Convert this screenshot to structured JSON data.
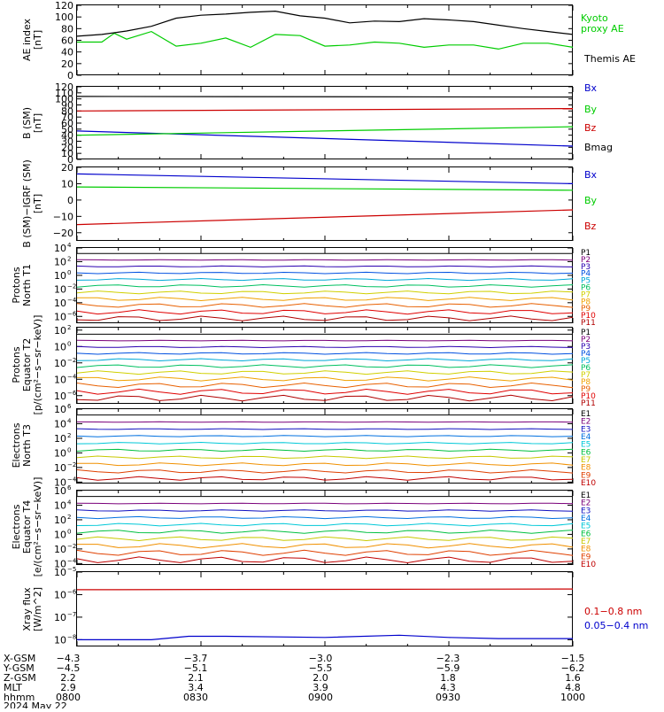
{
  "chart_data": [
    {
      "type": "line",
      "ylabel": "AE index [nT]",
      "ylim": [
        0,
        120
      ],
      "yticks": [
        "0",
        "20",
        "40",
        "60",
        "80",
        "100",
        "120"
      ],
      "x_hours": [
        8.0,
        10.0
      ],
      "series": [
        {
          "name": "Kyoto proxy AE",
          "color": "#00cc00",
          "x": [
            8.0,
            8.1,
            8.15,
            8.2,
            8.3,
            8.4,
            8.5,
            8.6,
            8.7,
            8.8,
            8.9,
            9.0,
            9.1,
            9.2,
            9.3,
            9.4,
            9.5,
            9.6,
            9.7,
            9.8,
            9.9,
            10.0
          ],
          "values": [
            57,
            57,
            72,
            62,
            75,
            50,
            55,
            64,
            48,
            70,
            68,
            50,
            52,
            57,
            55,
            48,
            52,
            52,
            45,
            55,
            55,
            48
          ]
        },
        {
          "name": "Themis AE",
          "color": "#000000",
          "x": [
            8.0,
            8.1,
            8.2,
            8.3,
            8.4,
            8.5,
            8.6,
            8.7,
            8.8,
            8.9,
            9.0,
            9.1,
            9.2,
            9.3,
            9.4,
            9.5,
            9.6,
            9.7,
            9.8,
            9.9,
            10.0
          ],
          "values": [
            67,
            70,
            76,
            84,
            98,
            103,
            105,
            108,
            110,
            102,
            98,
            90,
            93,
            92,
            97,
            95,
            92,
            86,
            80,
            75,
            70
          ]
        }
      ]
    },
    {
      "type": "line",
      "ylabel": "B (SM) [nT]",
      "ylim": [
        0,
        120
      ],
      "yticks": [
        "0",
        "10",
        "20",
        "30",
        "40",
        "50",
        "60",
        "70",
        "80",
        "90",
        "100",
        "110",
        "120"
      ],
      "series": [
        {
          "name": "Bx",
          "color": "#0000cc",
          "x": [
            8.0,
            10.0
          ],
          "values": [
            47,
            22
          ]
        },
        {
          "name": "By",
          "color": "#00cc00",
          "x": [
            8.0,
            10.0
          ],
          "values": [
            40,
            54
          ]
        },
        {
          "name": "Bz",
          "color": "#cc0000",
          "x": [
            8.0,
            10.0
          ],
          "values": [
            80,
            84
          ]
        },
        {
          "name": "Bmag",
          "color": "#000000",
          "x": [
            8.0,
            10.0
          ],
          "values": [
            104,
            103
          ]
        }
      ]
    },
    {
      "type": "line",
      "ylabel": "B (SM)-IGRF (SM) [nT]",
      "ylim": [
        -25,
        20
      ],
      "yticks": [
        "−20",
        "−10",
        "0",
        "10",
        "20"
      ],
      "series": [
        {
          "name": "Bx",
          "color": "#0000cc",
          "x": [
            8.0,
            10.0
          ],
          "values": [
            16,
            10
          ]
        },
        {
          "name": "By",
          "color": "#00cc00",
          "x": [
            8.0,
            10.0
          ],
          "values": [
            8,
            6
          ]
        },
        {
          "name": "Bz",
          "color": "#cc0000",
          "x": [
            8.0,
            10.0
          ],
          "values": [
            -15,
            -6
          ]
        }
      ]
    },
    {
      "type": "line",
      "log": true,
      "ylabel": "Protons North T1",
      "ylim_exp": [
        -7,
        4
      ],
      "tick_exps": [
        4,
        2,
        0,
        -2,
        -4,
        -6
      ],
      "channels": [
        "P1",
        "P2",
        "P3",
        "P4",
        "P5",
        "P6",
        "P7",
        "P8",
        "P9",
        "P10",
        "P11"
      ]
    },
    {
      "type": "line",
      "log": true,
      "ylabel": "Protons Equator T2 [p/(cm²-s-sr-keV)]",
      "ylim_exp": [
        -7,
        2.3
      ],
      "tick_exps": [
        2,
        0,
        -2,
        -4,
        -6
      ],
      "channels": [
        "P1",
        "P2",
        "P3",
        "P4",
        "P5",
        "P6",
        "P7",
        "P8",
        "P9",
        "P10",
        "P11"
      ]
    },
    {
      "type": "line",
      "log": true,
      "ylabel": "Electrons North T3",
      "ylim_exp": [
        -4.2,
        6
      ],
      "tick_exps": [
        6,
        4,
        2,
        0,
        -2,
        -4
      ],
      "channels": [
        "E1",
        "E2",
        "E3",
        "E4",
        "E5",
        "E6",
        "E7",
        "E8",
        "E9",
        "E10"
      ]
    },
    {
      "type": "line",
      "log": true,
      "ylabel": "Electrons Equator T4 [e/(cm²-s-sr-keV)]",
      "ylim_exp": [
        -4.2,
        6
      ],
      "tick_exps": [
        6,
        4,
        2,
        0,
        -2,
        -4
      ],
      "channels": [
        "E1",
        "E2",
        "E3",
        "E4",
        "E5",
        "E6",
        "E7",
        "E8",
        "E9",
        "E10"
      ]
    },
    {
      "type": "line",
      "log": true,
      "ylabel": "Xray flux [W/m^2]",
      "ylim_exp": [
        -8.3,
        -5
      ],
      "tick_exps": [
        -5,
        -6,
        -7,
        -8
      ],
      "series": [
        {
          "name": "0.1−0.8 nm",
          "color": "#cc0000",
          "exp": -5.8
        },
        {
          "name": "0.05−0.4 nm",
          "color": "#0000cc",
          "exp": -8.0
        }
      ]
    }
  ],
  "xaxis": {
    "rows": [
      {
        "label": "X-GSM",
        "values": [
          "−4.3",
          "−3.7",
          "−3.0",
          "−2.3",
          "−1.5"
        ]
      },
      {
        "label": "Y-GSM",
        "values": [
          "−4.5",
          "−5.1",
          "−5.5",
          "−5.9",
          "−6.2"
        ]
      },
      {
        "label": "Z-GSM",
        "values": [
          "2.2",
          "2.1",
          "2.0",
          "1.8",
          "1.6"
        ]
      },
      {
        "label": "MLT",
        "values": [
          "2.9",
          "3.4",
          "3.9",
          "4.3",
          "4.8"
        ]
      },
      {
        "label": "hhmm",
        "values": [
          "0800",
          "0830",
          "0900",
          "0930",
          "1000"
        ]
      }
    ],
    "date": "2024 May 22"
  },
  "labels": {
    "p1_y1": "AE index",
    "p1_y2": "[nT]",
    "p1_kyoto1": "Kyoto",
    "p1_kyoto2": "proxy AE",
    "p1_themis": "Themis AE",
    "p2_y1": "B (SM)",
    "p2_y2": "[nT]",
    "p3_y1": "B (SM)−IGRF (SM)",
    "p3_y2": "[nT]",
    "p4_y1": "Protons",
    "p4_y2": "North T1",
    "p5_y1": "Protons",
    "p5_y2": "Equator T2",
    "p5_y3": "[p/(cm²−s−sr−keV)]",
    "p6_y1": "Electrons",
    "p6_y2": "North T3",
    "p7_y1": "Electrons",
    "p7_y2": "Equator T4",
    "p7_y3": "[e/(cm²−s−sr−keV)]",
    "p8_y1": "Xray flux",
    "p8_y2": "[W/m^2]"
  },
  "colors": {
    "P": [
      "#000000",
      "#7a007a",
      "#2a00b0",
      "#0050e0",
      "#00a8d8",
      "#00c060",
      "#d0d000",
      "#f0a000",
      "#e86000",
      "#e00000",
      "#b00000"
    ],
    "E": [
      "#000000",
      "#7a007a",
      "#1010c0",
      "#0070e0",
      "#00c8d8",
      "#00c040",
      "#c8c800",
      "#f09000",
      "#e04000",
      "#c00000"
    ]
  }
}
